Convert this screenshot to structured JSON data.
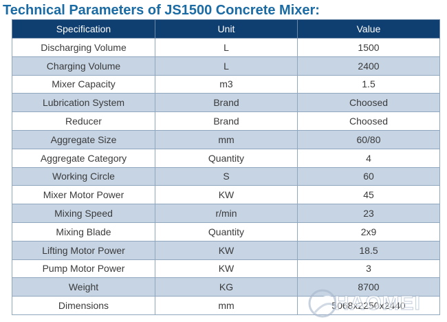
{
  "title": "Technical Parameters of JS1500 Concrete Mixer:",
  "table": {
    "headers": [
      "Specification",
      "Unit",
      "Value"
    ],
    "rows": [
      [
        "Discharging Volume",
        "L",
        "1500"
      ],
      [
        "Charging Volume",
        "L",
        "2400"
      ],
      [
        "Mixer Capacity",
        "m3",
        "1.5"
      ],
      [
        "Lubrication System",
        "Brand",
        "Choosed"
      ],
      [
        "Reducer",
        "Brand",
        "Choosed"
      ],
      [
        "Aggregate Size",
        "mm",
        "60/80"
      ],
      [
        "Aggregate Category",
        "Quantity",
        "4"
      ],
      [
        "Working Circle",
        "S",
        "60"
      ],
      [
        "Mixer Motor Power",
        "KW",
        "45"
      ],
      [
        "Mixing Speed",
        "r/min",
        "23"
      ],
      [
        "Mixing Blade",
        "Quantity",
        "2x9"
      ],
      [
        "Lifting Motor Power",
        "KW",
        "18.5"
      ],
      [
        "Pump Motor Power",
        "KW",
        "3"
      ],
      [
        "Weight",
        "KG",
        "8700"
      ],
      [
        "Dimensions",
        "mm",
        "5068x2250x2440"
      ]
    ]
  },
  "watermark": {
    "text": "HAOMEI",
    "icon": "globe-logo-icon"
  },
  "colors": {
    "title": "#1a6aa3",
    "header_bg": "#0f3e70",
    "header_text": "#ffffff",
    "row_alt": "#c6d4e4",
    "row_plain": "#ffffff",
    "grid": "#8fa6bf"
  }
}
